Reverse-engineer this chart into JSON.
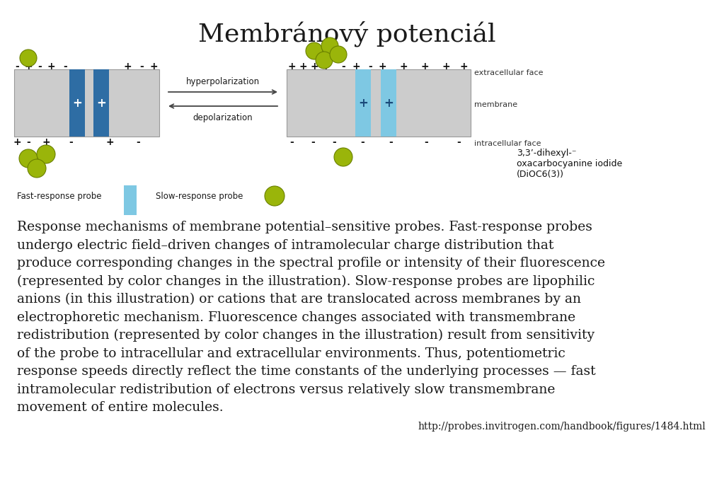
{
  "title": "Membránový potenciál",
  "title_fontsize": 26,
  "body_fontsize": 13.5,
  "url_fontsize": 10,
  "bg_color": "#ffffff",
  "text_color": "#1a1a1a",
  "fig_width": 9.6,
  "fig_height": 6.91,
  "paragraph_lines": [
    "Response mechanisms of membrane potential–sensitive probes. Fast-response probes",
    "undergo electric field–driven changes of intramolecular charge distribution that",
    "produce corresponding changes in the spectral profile or intensity of their fluorescence",
    "(represented by color changes in the illustration). Slow-response probes are lipophilic",
    "anions (in this illustration) or cations that are translocated across membranes by an",
    "electrophoretic mechanism. Fluorescence changes associated with transmembrane",
    "redistribution (represented by color changes in the illustration) result from sensitivity",
    "of the probe to intracellular and extracellular environments. Thus, potentiometric",
    "response speeds directly reflect the time constants of the underlying processes — fast",
    "intramolecular redistribution of electrons versus relatively slow transmembrane",
    "movement of entire molecules."
  ],
  "url": "http://probes.invitrogen.com/handbook/figures/1484.html",
  "diagram_bg": "#cccccc",
  "blue_dark": "#2e6da4",
  "blue_light": "#7ec8e3",
  "yellow_green": "#9ab50a",
  "arrow_color": "#444444",
  "text_sm_color": "#333333",
  "plus_minus_color": "#111111",
  "chem_text_color": "#111111"
}
